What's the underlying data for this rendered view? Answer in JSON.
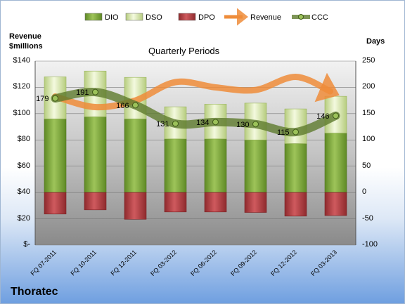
{
  "company": "Thoratec",
  "chart_data": {
    "type": "bar",
    "title": "Quarterly Periods",
    "y_left_label": "Revenue\n$millions",
    "y_right_label": "Days",
    "y_left_ticks": [
      "$-",
      "$20",
      "$40",
      "$60",
      "$80",
      "$100",
      "$120",
      "$140"
    ],
    "y_left_range": [
      0,
      140
    ],
    "y_right_ticks": [
      "-100",
      "-50",
      "0",
      "50",
      "100",
      "150",
      "200",
      "250"
    ],
    "y_right_range": [
      -100,
      250
    ],
    "categories": [
      "FQ 07-2011",
      "FQ 10-2011",
      "FQ 12-2011",
      "FQ 03-2012",
      "FQ 06-2012",
      "FQ 09-2012",
      "FQ 12-2012",
      "FQ 03-2013"
    ],
    "legend": [
      "DIO",
      "DSO",
      "DPO",
      "Revenue",
      "CCC"
    ],
    "legend_position": "top",
    "series": [
      {
        "name": "DIO",
        "axis": "right",
        "values": [
          140,
          144,
          140,
          102,
          102,
          100,
          93,
          113
        ],
        "color": "#7aa33a"
      },
      {
        "name": "DSO",
        "axis": "right",
        "values": [
          80,
          87,
          79,
          61,
          66,
          70,
          66,
          70
        ],
        "color": "#e4f0c0"
      },
      {
        "name": "DPO",
        "axis": "right",
        "values": [
          -41,
          -33,
          -51,
          -37,
          -37,
          -38,
          -45,
          -44
        ],
        "color": "#b13a3e"
      },
      {
        "name": "Revenue",
        "axis": "left",
        "values": [
          113,
          105,
          110,
          124,
          120,
          118,
          128,
          117
        ],
        "color": "#ee8c3a"
      },
      {
        "name": "CCC",
        "axis": "right",
        "values": [
          179,
          191,
          166,
          131,
          134,
          130,
          115,
          146
        ],
        "color": "#5e7a2d"
      }
    ],
    "ccc_labels": [
      "179",
      "191",
      "166",
      "131",
      "134",
      "130",
      "115",
      "146"
    ],
    "grid": true
  }
}
